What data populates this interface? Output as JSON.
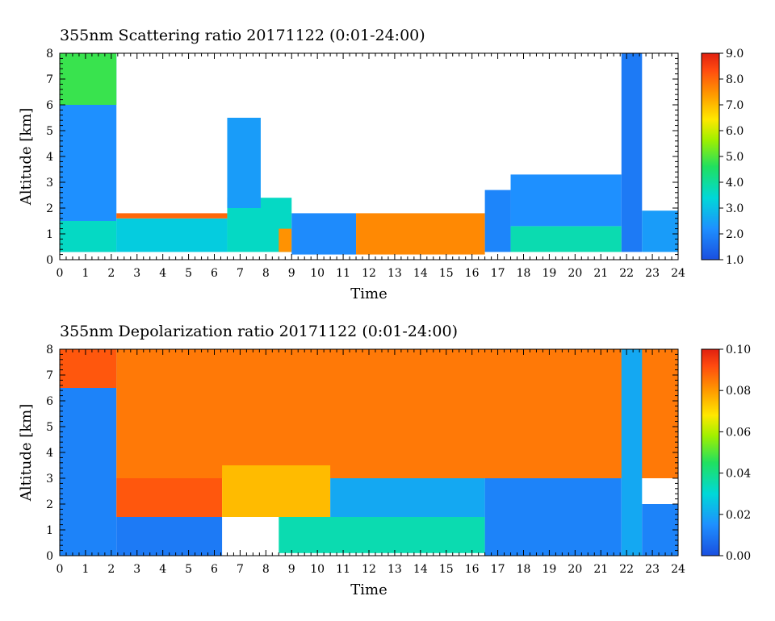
{
  "chart_data": [
    {
      "type": "heatmap",
      "title": "355nm Scattering ratio  20171122 (0:01-24:00)",
      "xlabel": "Time",
      "ylabel": "Altitude [km]",
      "xlim": [
        0,
        24
      ],
      "ylim": [
        0,
        8
      ],
      "x_ticks": [
        "0",
        "1",
        "2",
        "3",
        "4",
        "5",
        "6",
        "7",
        "8",
        "9",
        "10",
        "11",
        "12",
        "13",
        "14",
        "15",
        "16",
        "17",
        "18",
        "19",
        "20",
        "21",
        "22",
        "23",
        "24"
      ],
      "y_ticks": [
        "0",
        "1",
        "2",
        "3",
        "4",
        "5",
        "6",
        "7",
        "8"
      ],
      "colorbar": {
        "min": 1.0,
        "max": 9.0,
        "ticks": [
          "1.0",
          "2.0",
          "3.0",
          "4.0",
          "5.0",
          "6.0",
          "7.0",
          "8.0",
          "9.0"
        ]
      },
      "regions": [
        {
          "t0": 0.0,
          "t1": 2.2,
          "z0": 0.3,
          "z1": 8.0,
          "value": 2.2
        },
        {
          "t0": 0.0,
          "t1": 2.2,
          "z0": 0.3,
          "z1": 1.5,
          "value": 3.6
        },
        {
          "t0": 0.0,
          "t1": 2.2,
          "z0": 6.0,
          "z1": 8.0,
          "value": 4.8
        },
        {
          "t0": 2.2,
          "t1": 6.5,
          "z0": 0.3,
          "z1": 1.6,
          "value": 3.2
        },
        {
          "t0": 2.2,
          "t1": 6.5,
          "z0": 1.6,
          "z1": 1.8,
          "value": 8.0
        },
        {
          "t0": 6.5,
          "t1": 9.0,
          "z0": 0.3,
          "z1": 2.4,
          "value": 3.6
        },
        {
          "t0": 6.5,
          "t1": 7.8,
          "z0": 2.0,
          "z1": 5.5,
          "value": 2.4
        },
        {
          "t0": 8.5,
          "t1": 9.0,
          "z0": 0.3,
          "z1": 1.2,
          "value": 7.5
        },
        {
          "t0": 9.0,
          "t1": 11.5,
          "z0": 0.2,
          "z1": 1.8,
          "value": 2.1
        },
        {
          "t0": 11.5,
          "t1": 16.5,
          "z0": 0.2,
          "z1": 1.8,
          "value": 7.6
        },
        {
          "t0": 16.5,
          "t1": 17.5,
          "z0": 0.3,
          "z1": 2.7,
          "value": 2.0
        },
        {
          "t0": 17.5,
          "t1": 21.8,
          "z0": 0.3,
          "z1": 1.3,
          "value": 3.8
        },
        {
          "t0": 17.5,
          "t1": 21.8,
          "z0": 1.3,
          "z1": 3.3,
          "value": 2.2
        },
        {
          "t0": 21.8,
          "t1": 22.6,
          "z0": 0.3,
          "z1": 8.0,
          "value": 1.8
        },
        {
          "t0": 22.6,
          "t1": 24.0,
          "z0": 0.3,
          "z1": 1.9,
          "value": 2.4
        }
      ]
    },
    {
      "type": "heatmap",
      "title": "355nm Depolarization ratio  20171122 (0:01-24:00)",
      "xlabel": "Time",
      "ylabel": "Altitude [km]",
      "xlim": [
        0,
        24
      ],
      "ylim": [
        0,
        8
      ],
      "x_ticks": [
        "0",
        "1",
        "2",
        "3",
        "4",
        "5",
        "6",
        "7",
        "8",
        "9",
        "10",
        "11",
        "12",
        "13",
        "14",
        "15",
        "16",
        "17",
        "18",
        "19",
        "20",
        "21",
        "22",
        "23",
        "24"
      ],
      "y_ticks": [
        "0",
        "1",
        "2",
        "3",
        "4",
        "5",
        "6",
        "7",
        "8"
      ],
      "colorbar": {
        "min": 0.0,
        "max": 0.1,
        "ticks": [
          "0.00",
          "0.02",
          "0.04",
          "0.06",
          "0.08",
          "0.10"
        ]
      },
      "regions": [
        {
          "t0": 0.0,
          "t1": 2.2,
          "z0": 0.0,
          "z1": 8.0,
          "value": 0.012
        },
        {
          "t0": 0.0,
          "t1": 2.2,
          "z0": 6.5,
          "z1": 8.0,
          "value": 0.09
        },
        {
          "t0": 2.2,
          "t1": 24.0,
          "z0": 3.0,
          "z1": 8.0,
          "value": 0.085
        },
        {
          "t0": 2.2,
          "t1": 6.3,
          "z0": 1.5,
          "z1": 3.0,
          "value": 0.09
        },
        {
          "t0": 2.2,
          "t1": 6.3,
          "z0": 0.0,
          "z1": 1.5,
          "value": 0.01
        },
        {
          "t0": 6.3,
          "t1": 10.5,
          "z0": 1.5,
          "z1": 3.5,
          "value": 0.075
        },
        {
          "t0": 8.5,
          "t1": 16.5,
          "z0": 0.1,
          "z1": 1.5,
          "value": 0.035
        },
        {
          "t0": 10.5,
          "t1": 16.5,
          "z0": 1.5,
          "z1": 3.0,
          "value": 0.02
        },
        {
          "t0": 16.5,
          "t1": 21.8,
          "z0": 0.0,
          "z1": 3.0,
          "value": 0.012
        },
        {
          "t0": 21.8,
          "t1": 22.6,
          "z0": 0.0,
          "z1": 8.0,
          "value": 0.02
        },
        {
          "t0": 22.6,
          "t1": 24.0,
          "z0": 0.0,
          "z1": 2.0,
          "value": 0.012
        }
      ]
    }
  ]
}
